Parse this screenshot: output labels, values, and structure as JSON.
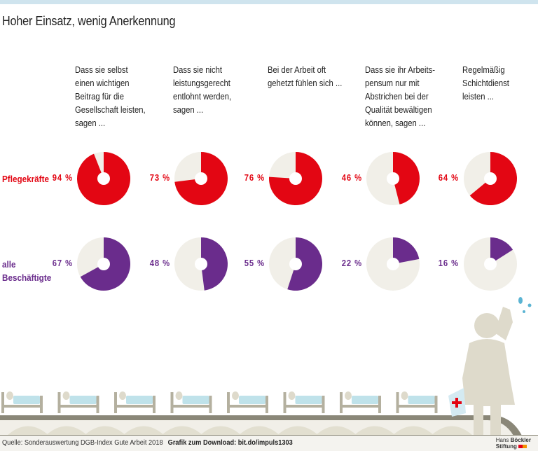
{
  "title": "Hoher Einsatz, wenig Anerkennung",
  "chart_data": {
    "type": "pie",
    "title": "Hoher Einsatz, wenig Anerkennung",
    "categories": [
      "Dass sie selbst\neinen wichtigen\nBeitrag für die\nGesellschaft leisten,\nsagen ...",
      "Dass sie nicht\nleistungsgerecht\nentlohnt werden,\nsagen ...",
      "Bei der Arbeit oft\ngehetzt fühlen sich ...",
      "Dass sie ihr Arbeits-\npensum nur mit\nAbstrichen bei der\nQualität bewältigen\nkönnen, sagen  ...",
      "Regelmäßig\nSchichtdienst\nleisten ..."
    ],
    "series": [
      {
        "name": "Pflegekräfte",
        "values": [
          94,
          73,
          76,
          46,
          64
        ],
        "labels": [
          "94 %",
          "73 %",
          "76 %",
          "46 %",
          "64 %"
        ],
        "color": "#e30613"
      },
      {
        "name": "alle\nBeschäftigte",
        "values": [
          67,
          48,
          55,
          22,
          16
        ],
        "labels": [
          "67 %",
          "48 %",
          "55 %",
          "22 %",
          "16 %"
        ],
        "color": "#6a2c8c"
      }
    ],
    "unit": "%",
    "remainder_color": "#f1efe8"
  },
  "footer": {
    "source": "Quelle: Sonderauswertung DGB-Index Gute Arbeit 2018",
    "download": "Grafik zum Download: bit.do/impuls1303",
    "logo": "Hans Böckler Stiftung"
  }
}
